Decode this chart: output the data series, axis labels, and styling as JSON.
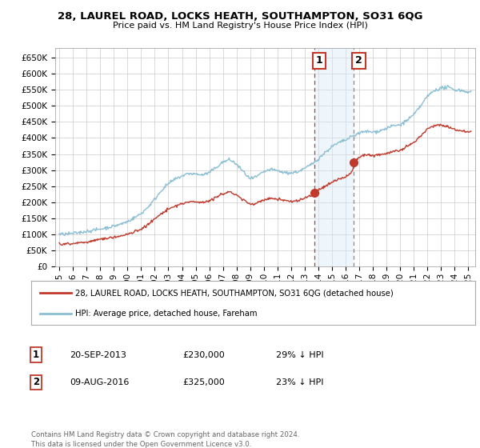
{
  "title": "28, LAUREL ROAD, LOCKS HEATH, SOUTHAMPTON, SO31 6QG",
  "subtitle": "Price paid vs. HM Land Registry's House Price Index (HPI)",
  "legend_line1": "28, LAUREL ROAD, LOCKS HEATH, SOUTHAMPTON, SO31 6QG (detached house)",
  "legend_line2": "HPI: Average price, detached house, Fareham",
  "transaction1_date": "20-SEP-2013",
  "transaction1_price": "£230,000",
  "transaction1_hpi": "29% ↓ HPI",
  "transaction2_date": "09-AUG-2016",
  "transaction2_price": "£325,000",
  "transaction2_hpi": "23% ↓ HPI",
  "footer": "Contains HM Land Registry data © Crown copyright and database right 2024.\nThis data is licensed under the Open Government Licence v3.0.",
  "hpi_color": "#8bbfd4",
  "price_color": "#c0392b",
  "marker_color": "#c0392b",
  "highlight_color": "#d6e8f5",
  "grid_color": "#cccccc",
  "background_color": "#ffffff",
  "ylim": [
    0,
    680000
  ],
  "yticks": [
    0,
    50000,
    100000,
    150000,
    200000,
    250000,
    300000,
    350000,
    400000,
    450000,
    500000,
    550000,
    600000,
    650000
  ],
  "xlim_start": 1994.7,
  "xlim_end": 2025.5,
  "t1_x": 2013.72,
  "t1_y": 230000,
  "t2_x": 2016.61,
  "t2_y": 325000,
  "hpi_points": [
    [
      1995.0,
      100000
    ],
    [
      1995.5,
      101000
    ],
    [
      1996.0,
      103000
    ],
    [
      1996.5,
      106000
    ],
    [
      1997.0,
      110000
    ],
    [
      1997.5,
      113000
    ],
    [
      1998.0,
      117000
    ],
    [
      1998.5,
      121000
    ],
    [
      1999.0,
      126000
    ],
    [
      1999.5,
      132000
    ],
    [
      2000.0,
      140000
    ],
    [
      2000.5,
      152000
    ],
    [
      2001.0,
      165000
    ],
    [
      2001.5,
      185000
    ],
    [
      2002.0,
      210000
    ],
    [
      2002.5,
      238000
    ],
    [
      2003.0,
      258000
    ],
    [
      2003.5,
      272000
    ],
    [
      2004.0,
      282000
    ],
    [
      2004.5,
      290000
    ],
    [
      2005.0,
      288000
    ],
    [
      2005.5,
      285000
    ],
    [
      2006.0,
      292000
    ],
    [
      2006.5,
      308000
    ],
    [
      2007.0,
      325000
    ],
    [
      2007.5,
      333000
    ],
    [
      2008.0,
      318000
    ],
    [
      2008.5,
      295000
    ],
    [
      2009.0,
      272000
    ],
    [
      2009.5,
      280000
    ],
    [
      2010.0,
      295000
    ],
    [
      2010.5,
      302000
    ],
    [
      2011.0,
      298000
    ],
    [
      2011.5,
      292000
    ],
    [
      2012.0,
      291000
    ],
    [
      2012.5,
      295000
    ],
    [
      2013.0,
      305000
    ],
    [
      2013.5,
      318000
    ],
    [
      2014.0,
      335000
    ],
    [
      2014.5,
      355000
    ],
    [
      2015.0,
      373000
    ],
    [
      2015.5,
      385000
    ],
    [
      2016.0,
      393000
    ],
    [
      2016.5,
      405000
    ],
    [
      2017.0,
      415000
    ],
    [
      2017.5,
      420000
    ],
    [
      2018.0,
      418000
    ],
    [
      2018.5,
      422000
    ],
    [
      2019.0,
      430000
    ],
    [
      2019.5,
      438000
    ],
    [
      2020.0,
      440000
    ],
    [
      2020.5,
      455000
    ],
    [
      2021.0,
      472000
    ],
    [
      2021.5,
      500000
    ],
    [
      2022.0,
      530000
    ],
    [
      2022.5,
      548000
    ],
    [
      2023.0,
      555000
    ],
    [
      2023.5,
      558000
    ],
    [
      2024.0,
      550000
    ],
    [
      2024.5,
      548000
    ],
    [
      2025.0,
      543000
    ]
  ],
  "price_points": [
    [
      1995.0,
      70000
    ],
    [
      1995.5,
      71000
    ],
    [
      1996.0,
      72000
    ],
    [
      1996.5,
      74000
    ],
    [
      1997.0,
      76000
    ],
    [
      1997.5,
      80000
    ],
    [
      1998.0,
      85000
    ],
    [
      1998.5,
      88000
    ],
    [
      1999.0,
      91000
    ],
    [
      1999.5,
      95000
    ],
    [
      2000.0,
      100000
    ],
    [
      2000.5,
      108000
    ],
    [
      2001.0,
      117000
    ],
    [
      2001.5,
      130000
    ],
    [
      2002.0,
      148000
    ],
    [
      2002.5,
      165000
    ],
    [
      2003.0,
      178000
    ],
    [
      2003.5,
      188000
    ],
    [
      2004.0,
      196000
    ],
    [
      2004.5,
      200000
    ],
    [
      2005.0,
      202000
    ],
    [
      2005.5,
      200000
    ],
    [
      2006.0,
      205000
    ],
    [
      2006.5,
      215000
    ],
    [
      2007.0,
      226000
    ],
    [
      2007.5,
      233000
    ],
    [
      2008.0,
      222000
    ],
    [
      2008.5,
      207000
    ],
    [
      2009.0,
      193000
    ],
    [
      2009.5,
      198000
    ],
    [
      2010.0,
      207000
    ],
    [
      2010.5,
      212000
    ],
    [
      2011.0,
      210000
    ],
    [
      2011.5,
      205000
    ],
    [
      2012.0,
      202000
    ],
    [
      2012.5,
      205000
    ],
    [
      2013.0,
      213000
    ],
    [
      2013.5,
      221000
    ],
    [
      2013.72,
      230000
    ],
    [
      2014.0,
      237000
    ],
    [
      2014.5,
      250000
    ],
    [
      2015.0,
      262000
    ],
    [
      2015.5,
      272000
    ],
    [
      2016.0,
      278000
    ],
    [
      2016.5,
      295000
    ],
    [
      2016.61,
      325000
    ],
    [
      2017.0,
      340000
    ],
    [
      2017.5,
      348000
    ],
    [
      2018.0,
      345000
    ],
    [
      2018.5,
      348000
    ],
    [
      2019.0,
      352000
    ],
    [
      2019.5,
      358000
    ],
    [
      2020.0,
      360000
    ],
    [
      2020.5,
      372000
    ],
    [
      2021.0,
      385000
    ],
    [
      2021.5,
      405000
    ],
    [
      2022.0,
      428000
    ],
    [
      2022.5,
      438000
    ],
    [
      2023.0,
      440000
    ],
    [
      2023.5,
      435000
    ],
    [
      2024.0,
      425000
    ],
    [
      2024.5,
      422000
    ],
    [
      2025.0,
      420000
    ]
  ]
}
